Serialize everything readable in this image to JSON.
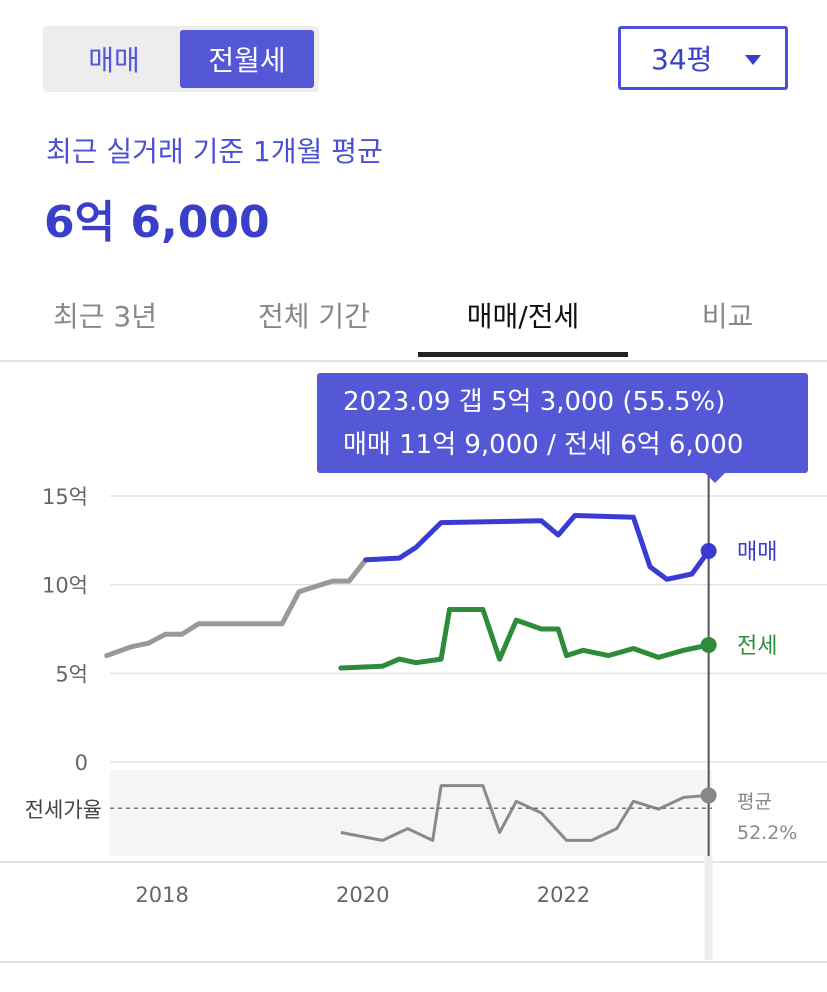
{
  "segment": {
    "options": [
      "매매",
      "전월세"
    ],
    "selected": "전월세"
  },
  "area_select": {
    "value": "34평"
  },
  "subtitle": "최근 실거래 기준 1개월 평균",
  "price": "6억 6,000",
  "tabs": [
    "최근 3년",
    "전체 기간",
    "매매/전세",
    "비교"
  ],
  "active_tab": "매매/전세",
  "tooltip": {
    "line1": "2023.09  갭 5억 3,000 (55.5%)",
    "line2": "매매 11억 9,000 / 전세 6억 6,000"
  },
  "colors": {
    "accent": "#5457d6",
    "sale": "#3b3bd4",
    "jeonse": "#2e8b3a",
    "history": "#999999",
    "ratio": "#8a8a8a"
  },
  "chart_data": {
    "type": "line",
    "y_ticks": [
      "15억",
      "10억",
      "5억",
      "0"
    ],
    "ylim": [
      0,
      15
    ],
    "x_ticks": [
      "2018",
      "2020",
      "2022"
    ],
    "series_labels": {
      "sale": "매매",
      "jeonse": "전세"
    },
    "series": [
      {
        "name": "매매",
        "unit": "억",
        "points": [
          [
            "2017.09",
            6.0
          ],
          [
            "2017.12",
            6.5
          ],
          [
            "2018.02",
            6.7
          ],
          [
            "2018.04",
            7.2
          ],
          [
            "2018.06",
            7.2
          ],
          [
            "2018.08",
            7.8
          ],
          [
            "2019.06",
            7.8
          ],
          [
            "2019.08",
            9.6
          ],
          [
            "2019.12",
            10.2
          ],
          [
            "2020.02",
            10.2
          ],
          [
            "2020.04",
            11.4
          ],
          [
            "2020.08",
            11.5
          ],
          [
            "2020.10",
            12.1
          ],
          [
            "2021.01",
            13.5
          ],
          [
            "2022.01",
            13.6
          ],
          [
            "2022.03",
            12.8
          ],
          [
            "2022.05",
            13.9
          ],
          [
            "2022.12",
            13.8
          ],
          [
            "2023.02",
            11.0
          ],
          [
            "2023.04",
            10.3
          ],
          [
            "2023.07",
            10.6
          ],
          [
            "2023.09",
            11.9
          ]
        ]
      },
      {
        "name": "전세",
        "unit": "억",
        "points": [
          [
            "2020.01",
            5.3
          ],
          [
            "2020.06",
            5.4
          ],
          [
            "2020.08",
            5.8
          ],
          [
            "2020.10",
            5.6
          ],
          [
            "2021.01",
            5.8
          ],
          [
            "2021.02",
            8.6
          ],
          [
            "2021.06",
            8.6
          ],
          [
            "2021.08",
            5.8
          ],
          [
            "2021.10",
            8.0
          ],
          [
            "2022.01",
            7.5
          ],
          [
            "2022.03",
            7.5
          ],
          [
            "2022.04",
            6.0
          ],
          [
            "2022.06",
            6.3
          ],
          [
            "2022.09",
            6.0
          ],
          [
            "2022.12",
            6.4
          ],
          [
            "2023.03",
            5.9
          ],
          [
            "2023.06",
            6.3
          ],
          [
            "2023.09",
            6.6
          ]
        ]
      }
    ],
    "ratio": {
      "label": "전세가율",
      "average_label": "평균",
      "average_value": "52.2%",
      "points": [
        [
          "2020.01",
          46
        ],
        [
          "2020.06",
          44
        ],
        [
          "2020.09",
          47
        ],
        [
          "2020.12",
          44
        ],
        [
          "2021.01",
          58
        ],
        [
          "2021.06",
          58
        ],
        [
          "2021.08",
          46
        ],
        [
          "2021.10",
          54
        ],
        [
          "2022.01",
          51
        ],
        [
          "2022.04",
          44
        ],
        [
          "2022.07",
          44
        ],
        [
          "2022.10",
          47
        ],
        [
          "2022.12",
          54
        ],
        [
          "2023.03",
          52
        ],
        [
          "2023.06",
          55
        ],
        [
          "2023.09",
          55.5
        ]
      ]
    },
    "highlight": "2023.09"
  }
}
